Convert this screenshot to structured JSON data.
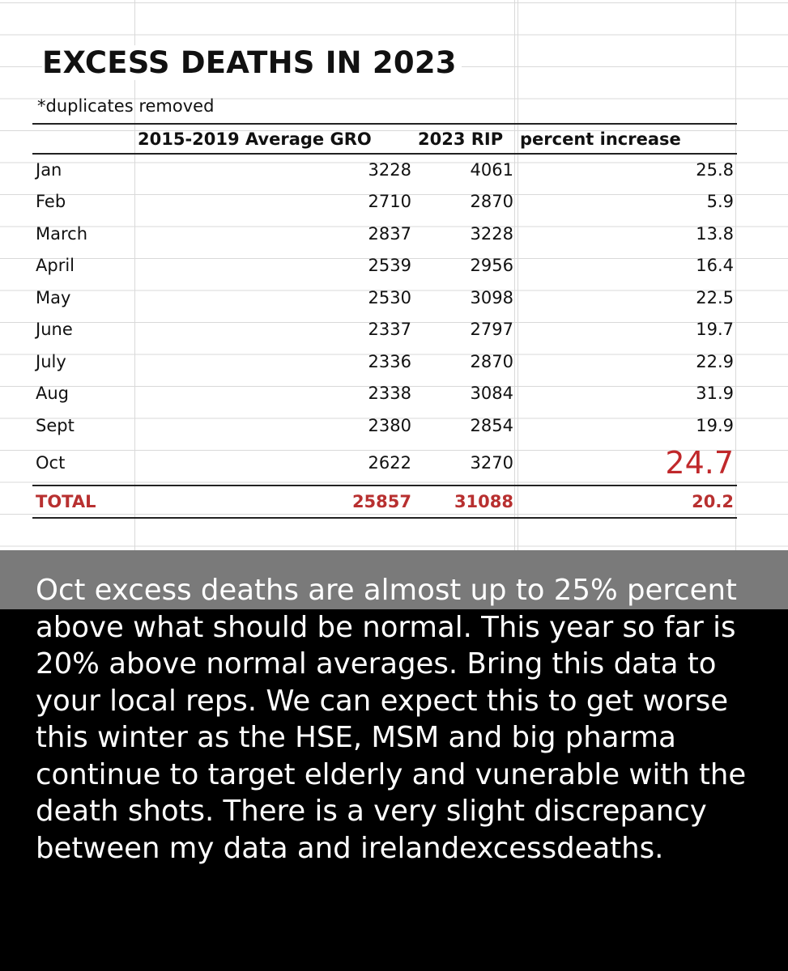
{
  "title": "EXCESS DEATHS IN 2023",
  "subtitle": "*duplicates removed",
  "headers": [
    "",
    "2015-2019 Average GRO",
    "2023 RIP",
    "percent increase"
  ],
  "rows": [
    {
      "month": "Jan",
      "avg": "3228",
      "rip": "4061",
      "pct": "25.8"
    },
    {
      "month": "Feb",
      "avg": "2710",
      "rip": "2870",
      "pct": "5.9"
    },
    {
      "month": "March",
      "avg": "2837",
      "rip": "3228",
      "pct": "13.8"
    },
    {
      "month": "April",
      "avg": "2539",
      "rip": "2956",
      "pct": "16.4"
    },
    {
      "month": "May",
      "avg": "2530",
      "rip": "3098",
      "pct": "22.5"
    },
    {
      "month": "June",
      "avg": "2337",
      "rip": "2797",
      "pct": "19.7"
    },
    {
      "month": "July",
      "avg": "2336",
      "rip": "2870",
      "pct": "22.9"
    },
    {
      "month": "Aug",
      "avg": "2338",
      "rip": "3084",
      "pct": "31.9"
    },
    {
      "month": "Sept",
      "avg": "2380",
      "rip": "2854",
      "pct": "19.9"
    },
    {
      "month": "Oct",
      "avg": "2622",
      "rip": "3270",
      "pct": "24.7"
    }
  ],
  "total": {
    "label": "TOTAL",
    "avg": "25857",
    "rip": "31088",
    "pct": "20.2"
  },
  "highlight_color": "#c0282b",
  "caption": "Oct excess deaths are almost up to 25% percent above what should be normal. This year so far is 20% above normal averages. Bring this data to your local reps. We can expect this to get worse this winter as the HSE, MSM and big pharma continue to target elderly and vunerable with the death shots. There is a very slight discrepancy between my data and irelandexcessdeaths."
}
